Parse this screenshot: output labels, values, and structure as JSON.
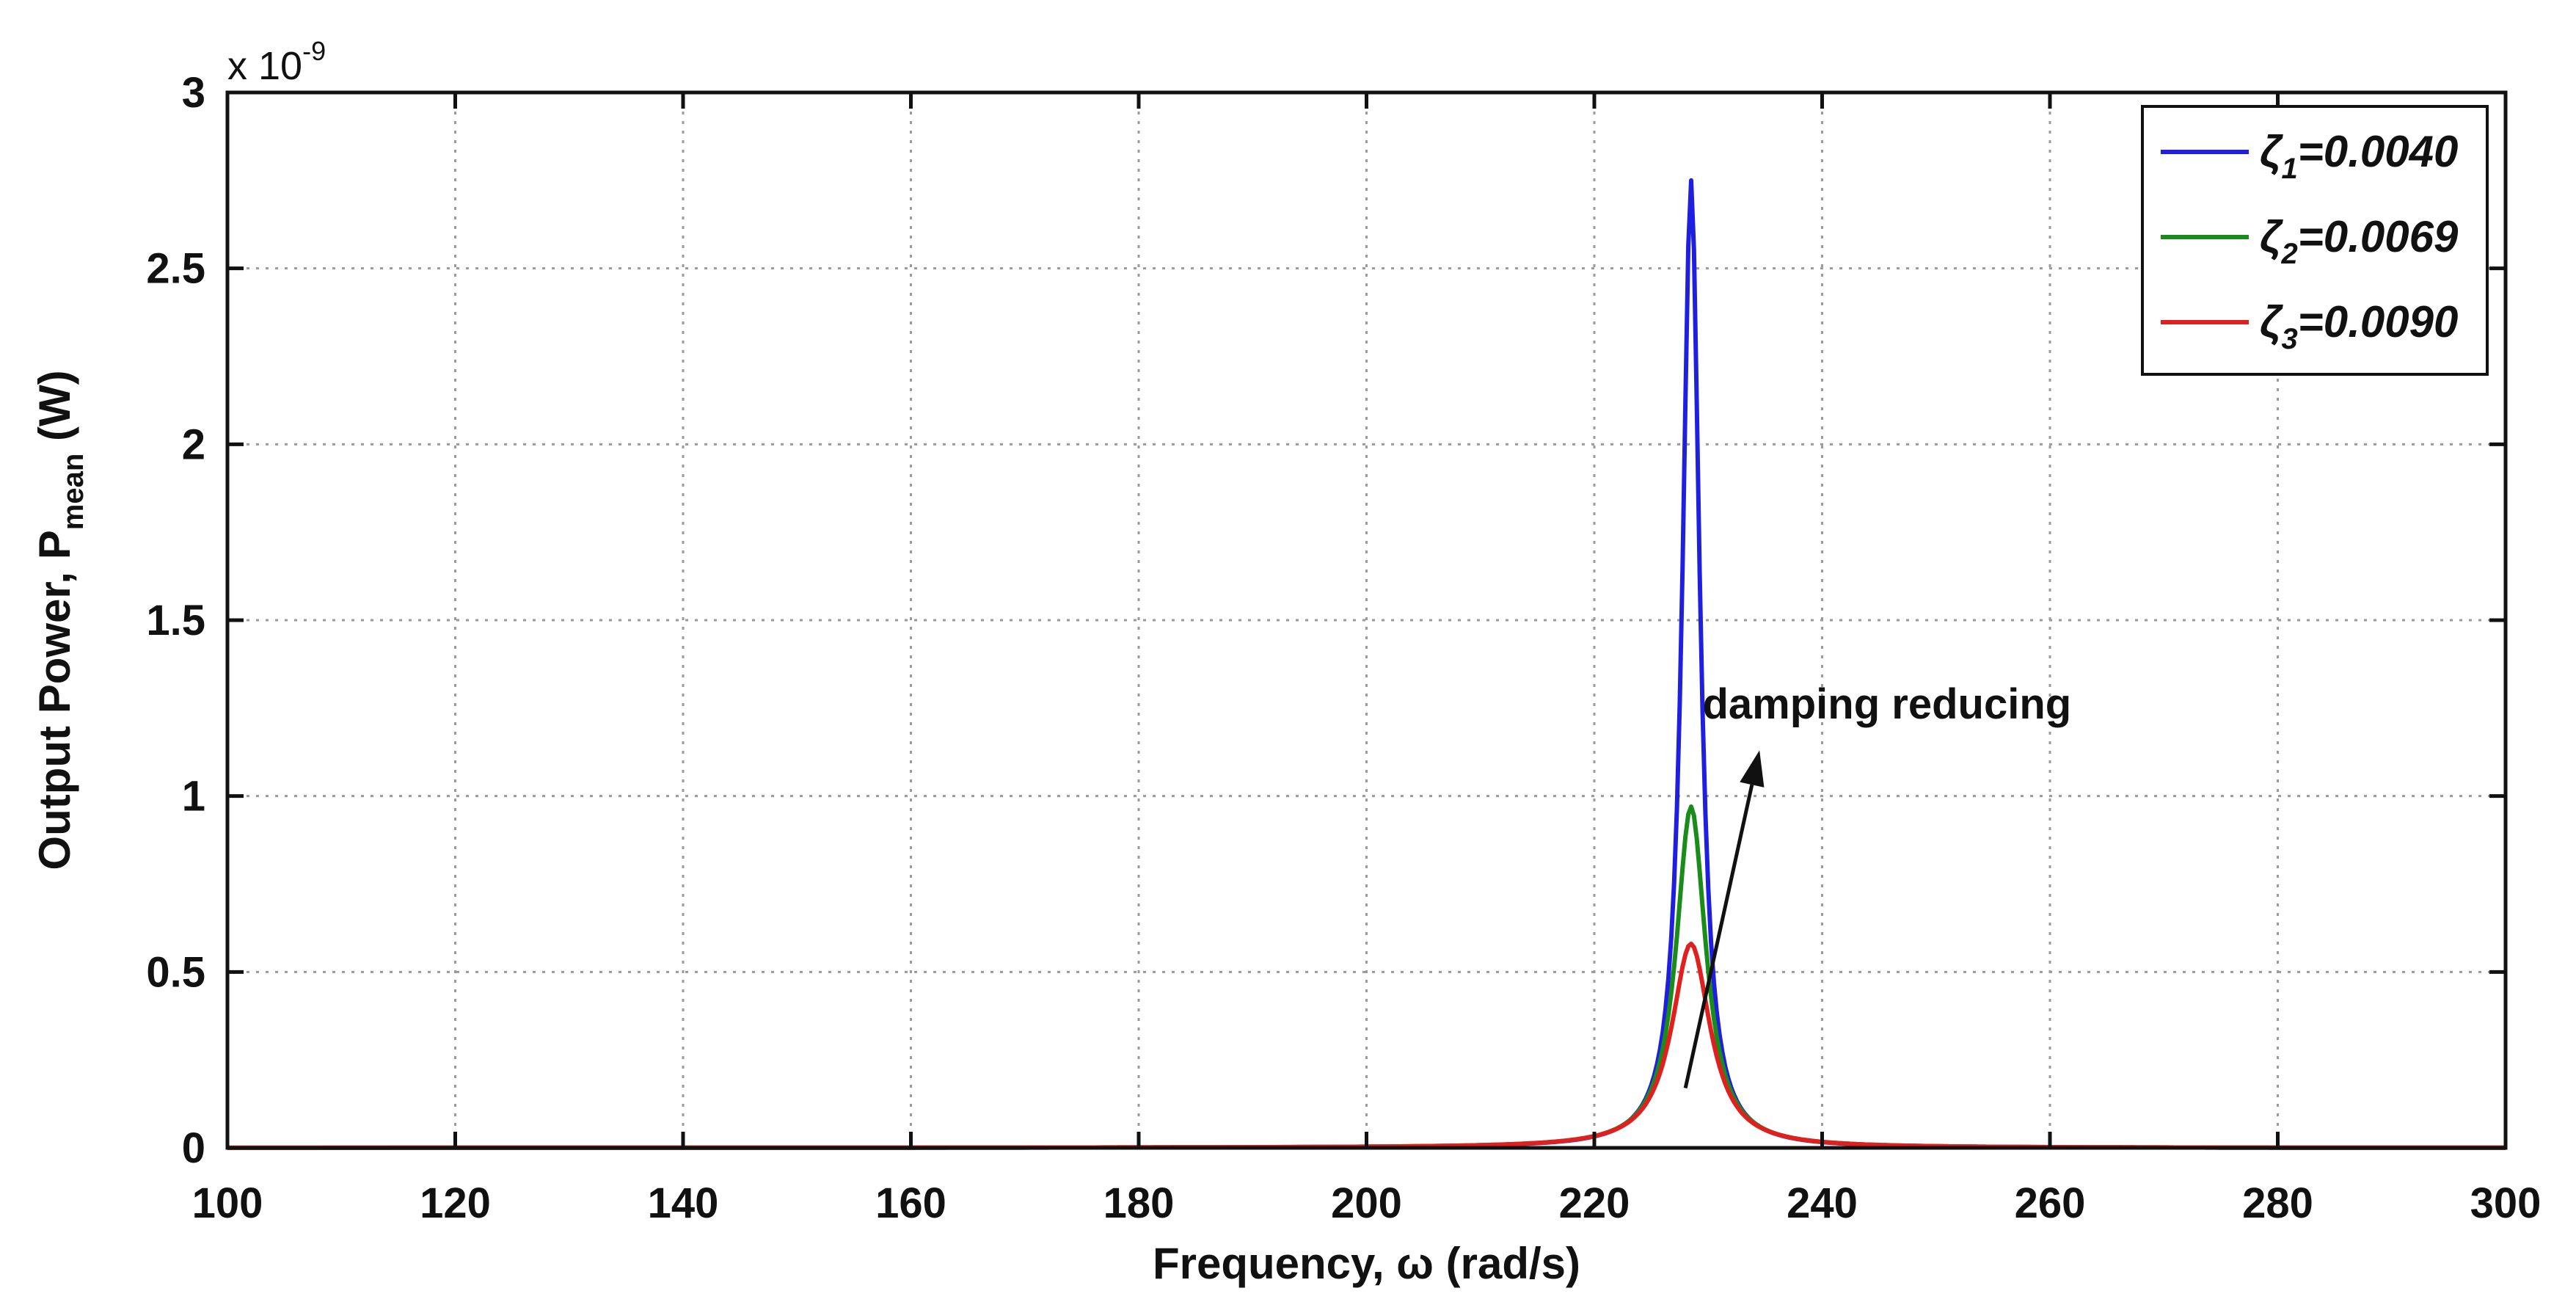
{
  "chart_data": {
    "type": "line",
    "title": "",
    "xlabel": "Frequency,",
    "xlabel_symbol": "ω",
    "xlabel_unit": "(rad/s)",
    "ylabel_main": "Output Power, P",
    "ylabel_sub": "mean",
    "ylabel_unit": " (W)",
    "y_exponent_base": "x 10",
    "y_exponent_power": "-9",
    "xlim": [
      100,
      300
    ],
    "ylim": [
      0,
      3
    ],
    "x_ticks": [
      "100",
      "120",
      "140",
      "160",
      "180",
      "200",
      "220",
      "240",
      "260",
      "280",
      "300"
    ],
    "y_ticks": [
      "0",
      "0.5",
      "1",
      "1.5",
      "2",
      "2.5",
      "3"
    ],
    "grid": true,
    "legend_position": "top-right",
    "resonance_frequency": 228.5,
    "series": [
      {
        "symbol": "ζ",
        "sub": "1",
        "value": "=0.0040",
        "damping": 0.004,
        "peak": 2.75,
        "color": "#1f1fe0"
      },
      {
        "symbol": "ζ",
        "sub": "2",
        "value": "=0.0069",
        "damping": 0.0069,
        "peak": 0.97,
        "color": "#1a8c1a"
      },
      {
        "symbol": "ζ",
        "sub": "3",
        "value": "=0.0090",
        "damping": 0.009,
        "peak": 0.58,
        "color": "#e01f1f"
      }
    ],
    "annotation": {
      "text": "damping reducing",
      "arrow_from": [
        228,
        0.17
      ],
      "arrow_to": [
        234.5,
        1.13
      ]
    }
  }
}
